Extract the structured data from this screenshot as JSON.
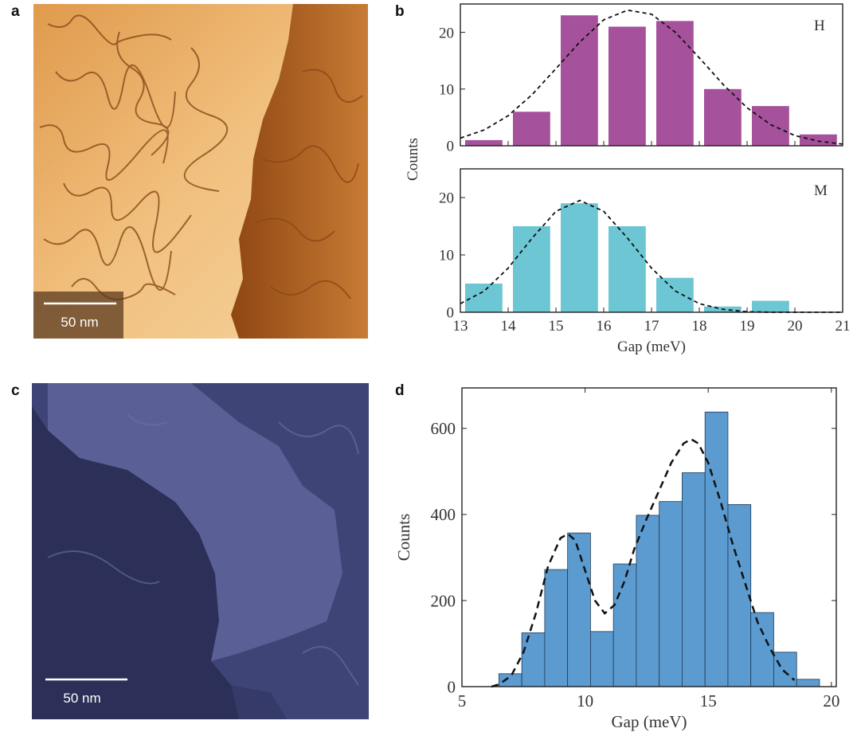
{
  "panel_labels": [
    "a",
    "b",
    "c",
    "d"
  ],
  "scale_bars": [
    "50 nm",
    "50 nm"
  ],
  "chart_data": [
    {
      "type": "histogram",
      "annotation": "H",
      "ylabel": "Counts",
      "bins": [
        13,
        14,
        15,
        16,
        17,
        18,
        19,
        20,
        21
      ],
      "values": [
        1,
        6,
        23,
        21,
        22,
        10,
        7,
        2
      ],
      "color": "#a5519b",
      "xlim": [
        13,
        21
      ],
      "ylim": [
        0,
        25
      ],
      "yticks": [
        0,
        10,
        20
      ],
      "fit": {
        "x": [
          13,
          13.5,
          14,
          14.5,
          15,
          15.5,
          16,
          16.5,
          17,
          17.5,
          18,
          18.5,
          19,
          19.5,
          20,
          20.5,
          21
        ],
        "y": [
          1.35,
          2.8,
          5.3,
          9.0,
          13.6,
          18.3,
          22.2,
          23.9,
          23.2,
          20.0,
          15.5,
          10.8,
          6.7,
          3.7,
          1.8,
          0.8,
          0.3
        ]
      }
    },
    {
      "type": "histogram",
      "annotation": "M",
      "xlabel": "Gap (meV)",
      "bins": [
        13,
        14,
        15,
        16,
        17,
        18,
        19,
        20,
        21
      ],
      "values": [
        5,
        15,
        19,
        15,
        6,
        1,
        2,
        0
      ],
      "color": "#6dc6d3",
      "xlim": [
        13,
        21
      ],
      "xticks": [
        13,
        14,
        15,
        16,
        17,
        18,
        19,
        20,
        21
      ],
      "ylim": [
        0,
        25
      ],
      "yticks": [
        0,
        10,
        20
      ],
      "fit": {
        "x": [
          13,
          13.5,
          14,
          14.5,
          15,
          15.5,
          16,
          16.5,
          17,
          17.5,
          18,
          18.5,
          19,
          19.5,
          20,
          20.5,
          21
        ],
        "y": [
          1.5,
          3.7,
          7.7,
          12.9,
          17.6,
          19.5,
          17.6,
          12.9,
          7.7,
          3.7,
          1.5,
          0.5,
          0.1,
          0,
          0,
          0,
          0
        ]
      }
    },
    {
      "type": "histogram",
      "xlabel": "Gap (meV)",
      "ylabel": "Counts",
      "bins": [
        6.5,
        7.43,
        8.36,
        9.29,
        10.22,
        11.15,
        12.08,
        13.01,
        13.94,
        14.87,
        15.8,
        16.73,
        17.66,
        18.59,
        19.52
      ],
      "values": [
        30,
        125,
        272,
        357,
        128,
        285,
        398,
        430,
        497,
        638,
        423,
        172,
        80,
        17
      ],
      "color": "#5b9bd0",
      "edgecolor": "#1e3a55",
      "xlim": [
        5,
        20.2
      ],
      "xticks": [
        5,
        10,
        15,
        20
      ],
      "ylim": [
        0,
        694
      ],
      "yticks": [
        0,
        200,
        400,
        600
      ],
      "fit": {
        "x": [
          6.2,
          6.5,
          7,
          7.5,
          8,
          8.5,
          9,
          9.3,
          9.6,
          10,
          10.4,
          10.8,
          11.2,
          11.6,
          12,
          12.5,
          13,
          13.5,
          14,
          14.3,
          14.6,
          15,
          15.5,
          16,
          16.5,
          17,
          17.5,
          18,
          18.5
        ],
        "y": [
          0,
          5,
          25,
          80,
          170,
          280,
          345,
          355,
          340,
          270,
          200,
          170,
          190,
          245,
          320,
          390,
          455,
          520,
          565,
          575,
          565,
          520,
          430,
          330,
          240,
          150,
          90,
          40,
          15
        ]
      }
    }
  ]
}
